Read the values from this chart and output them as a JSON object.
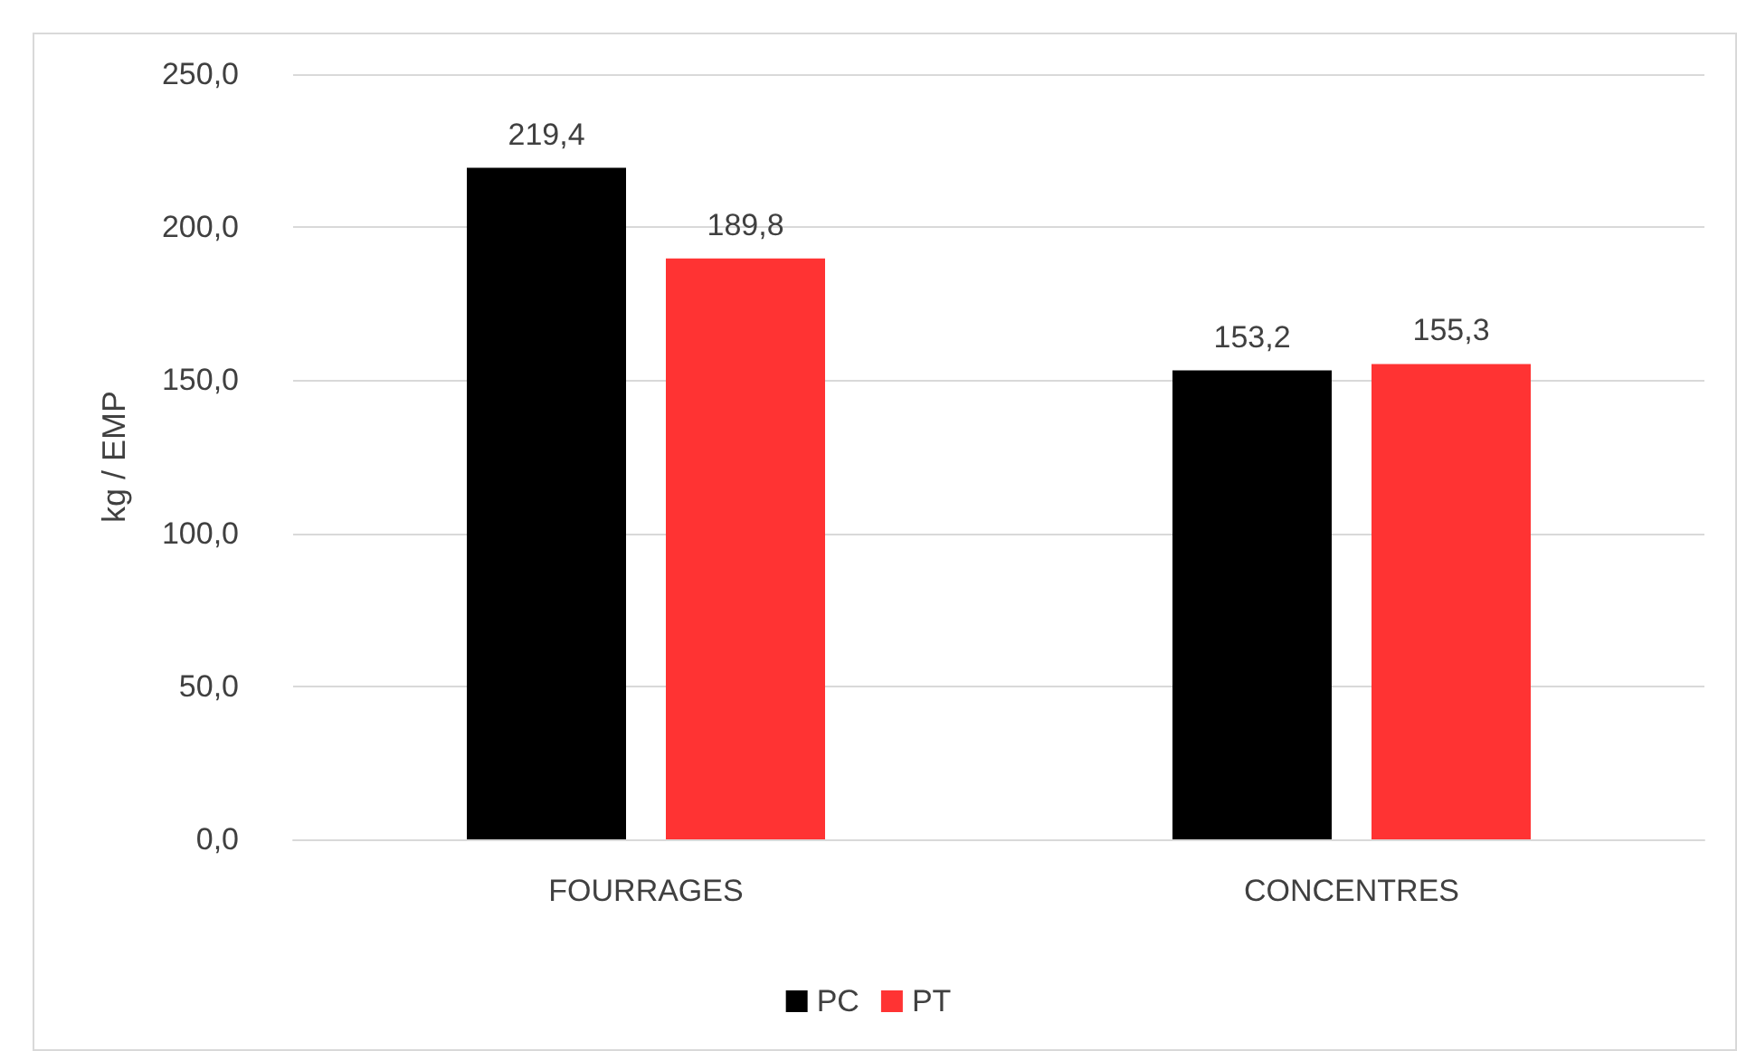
{
  "chart_data": {
    "type": "bar",
    "ylabel": "kg / EMP",
    "categories": [
      "FOURRAGES",
      "CONCENTRES"
    ],
    "series": [
      {
        "name": "PC",
        "color": "#000000",
        "values": [
          219.4,
          153.2
        ]
      },
      {
        "name": "PT",
        "color": "#ff3333",
        "values": [
          189.8,
          155.3
        ]
      }
    ],
    "ylim": [
      0,
      250
    ],
    "yticks": [
      {
        "value": 0,
        "label": "0,0"
      },
      {
        "value": 50,
        "label": "50,0"
      },
      {
        "value": 100,
        "label": "100,0"
      },
      {
        "value": 150,
        "label": "150,0"
      },
      {
        "value": 200,
        "label": "200,0"
      },
      {
        "value": 250,
        "label": "250,0"
      }
    ],
    "value_labels": [
      [
        "219,4",
        "153,2"
      ],
      [
        "189,8",
        "155,3"
      ]
    ],
    "grid": "y",
    "legend": "bottom"
  }
}
